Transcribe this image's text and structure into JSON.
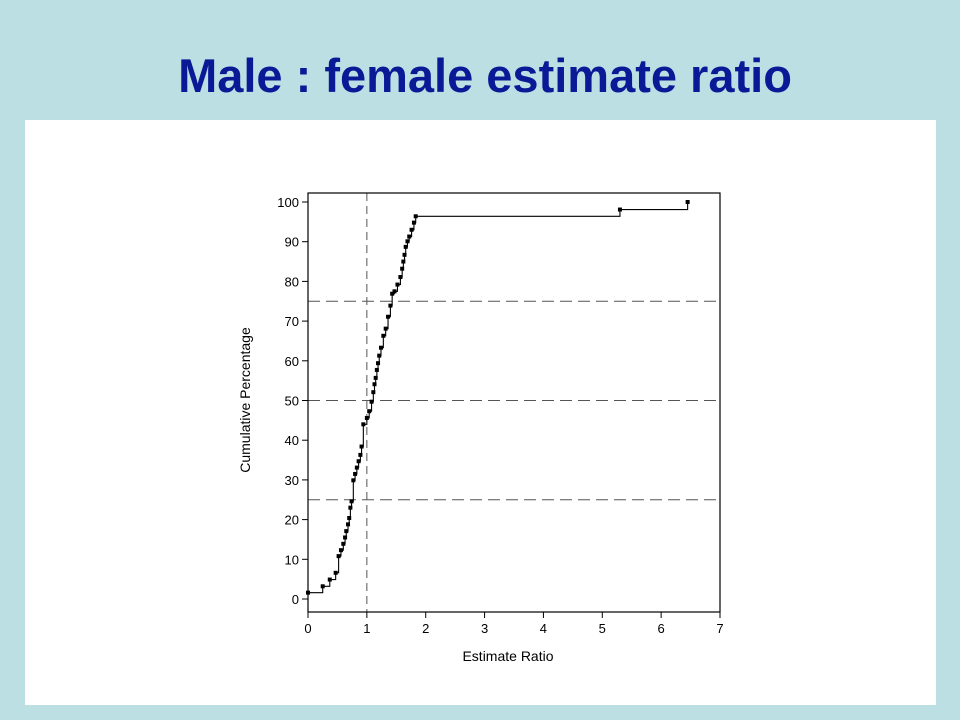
{
  "slide": {
    "title": "Male : female estimate ratio",
    "background_color": "#bcdfe3",
    "title_color": "#0a1a96"
  },
  "chart_data": {
    "type": "line",
    "title": "",
    "xlabel": "Estimate Ratio",
    "ylabel": "Cumulative Percentage",
    "xlim": [
      0,
      7
    ],
    "ylim": [
      0,
      100
    ],
    "x_ticks": [
      0,
      1,
      2,
      3,
      4,
      5,
      6,
      7
    ],
    "y_ticks": [
      0,
      10,
      20,
      30,
      40,
      50,
      60,
      70,
      80,
      90,
      100
    ],
    "grid": false,
    "reference_lines": {
      "vertical": [
        1
      ],
      "horizontal": [
        25,
        50,
        75
      ]
    },
    "series": [
      {
        "step": true,
        "marker": "square",
        "x": [
          0.0,
          0.25,
          0.37,
          0.47,
          0.52,
          0.56,
          0.6,
          0.63,
          0.65,
          0.68,
          0.7,
          0.72,
          0.74,
          0.77,
          0.8,
          0.83,
          0.86,
          0.89,
          0.91,
          0.94,
          1.0,
          1.04,
          1.08,
          1.11,
          1.13,
          1.15,
          1.17,
          1.19,
          1.21,
          1.24,
          1.28,
          1.32,
          1.36,
          1.4,
          1.43,
          1.47,
          1.52,
          1.57,
          1.6,
          1.62,
          1.64,
          1.66,
          1.69,
          1.72,
          1.76,
          1.8,
          1.83,
          5.3,
          6.45
        ],
        "y": [
          1.6,
          3.2,
          4.9,
          6.6,
          10.8,
          12.3,
          13.9,
          15.5,
          17.1,
          18.8,
          20.4,
          23.0,
          24.6,
          29.9,
          31.5,
          33.1,
          34.7,
          36.3,
          38.4,
          44.0,
          45.6,
          47.3,
          49.7,
          52.1,
          54.1,
          55.7,
          57.7,
          59.4,
          61.3,
          63.3,
          66.3,
          68.1,
          71.1,
          73.9,
          76.9,
          77.5,
          79.2,
          81.1,
          83.2,
          85.0,
          86.7,
          88.7,
          90.1,
          91.3,
          93.0,
          94.8,
          96.4,
          98.1,
          100.0
        ]
      }
    ]
  }
}
